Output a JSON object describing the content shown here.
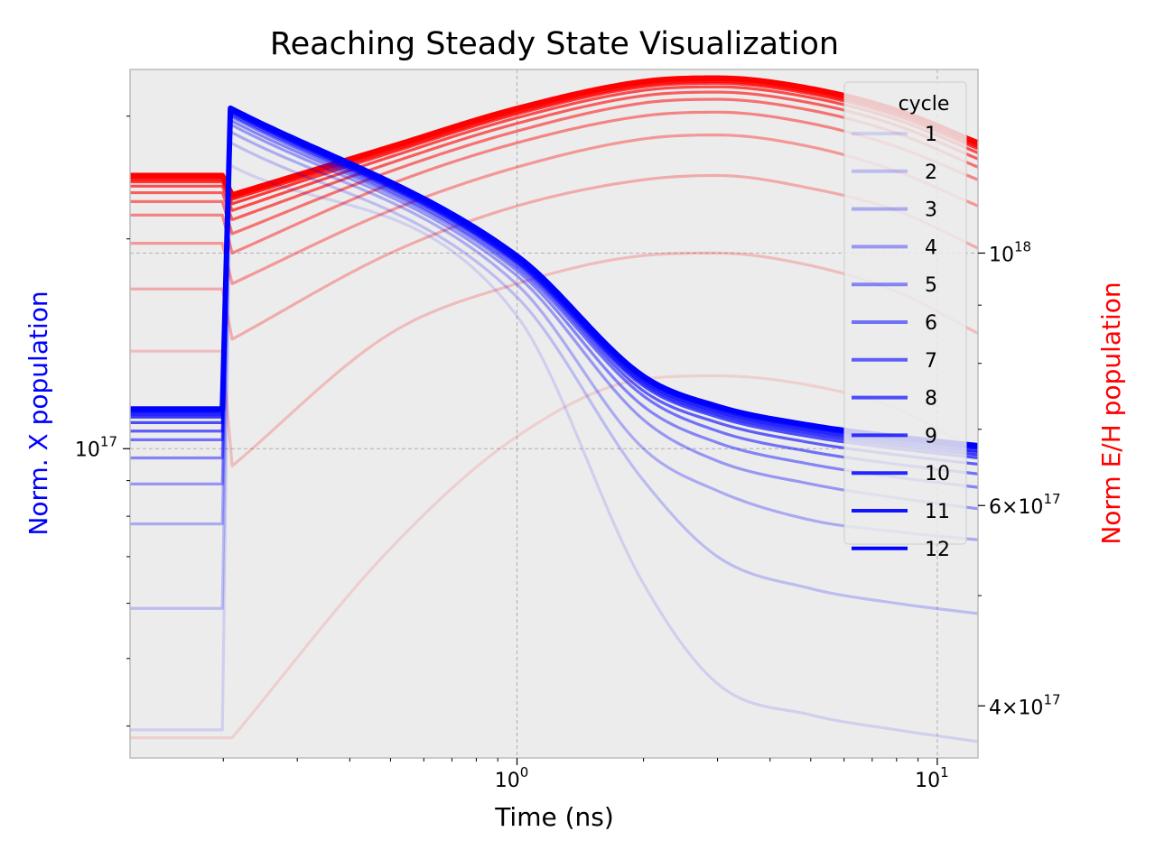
{
  "chart_data": {
    "type": "line",
    "title": "Reaching Steady State Visualization",
    "xlabel": "Time (ns)",
    "ylabel_left": "Norm. X population",
    "ylabel_right": "Norm E/H population",
    "xscale": "log",
    "yscale_left": "log",
    "yscale_right": "log",
    "xlim": [
      0.12,
      12.5
    ],
    "ylim_left": [
      3.6e+16,
      3.5e+17
    ],
    "ylim_right": [
      3.6e+17,
      1.45e+18
    ],
    "x_ticks": [
      {
        "value": 1,
        "mantissa": "10",
        "exponent": "0"
      },
      {
        "value": 10,
        "mantissa": "10",
        "exponent": "1"
      }
    ],
    "y_left_ticks": [
      {
        "value": 1e+17,
        "mantissa": "10",
        "exponent": "17"
      }
    ],
    "y_right_ticks": [
      {
        "value": 1e+18,
        "prefix": "",
        "mantissa": "10",
        "exponent": "18"
      },
      {
        "value": 6e+17,
        "prefix": "6×",
        "mantissa": "10",
        "exponent": "17"
      },
      {
        "value": 4e+17,
        "prefix": "4×",
        "mantissa": "10",
        "exponent": "17"
      }
    ],
    "grid": true,
    "legend": {
      "title": "cycle",
      "placement": "upper right"
    },
    "colors": {
      "x_population": "#0000ff",
      "eh_population": "#ff0000",
      "background": "#ececec"
    },
    "pulse_time": 0.2,
    "series_x": [
      {
        "name": "1",
        "pre": 3.95e+16,
        "peak": 2.55e+17,
        "x": [
          1,
          2,
          3,
          5,
          8,
          12.5
        ],
        "y": [
          1.55e+17,
          6.4e+16,
          4.6e+16,
          4.15e+16,
          3.95e+16,
          3.8e+16
        ]
      },
      {
        "name": "2",
        "pre": 5.9e+16,
        "peak": 2.75e+17,
        "x": [
          1,
          2,
          3,
          5,
          8,
          12.5
        ],
        "y": [
          1.65e+17,
          9e+16,
          7e+16,
          6.3e+16,
          6e+16,
          5.8e+16
        ]
      },
      {
        "name": "3",
        "pre": 7.8e+16,
        "peak": 2.85e+17,
        "x": [
          1,
          2,
          3,
          5,
          8,
          12.5
        ],
        "y": [
          1.72e+17,
          1e+17,
          8.7e+16,
          7.9e+16,
          7.6e+16,
          7.4e+16
        ]
      },
      {
        "name": "4",
        "pre": 8.9e+16,
        "peak": 2.92e+17,
        "x": [
          1,
          2,
          3,
          5,
          8,
          12.5
        ],
        "y": [
          1.77e+17,
          1.1e+17,
          9.6e+16,
          8.9e+16,
          8.5e+16,
          8.2e+16
        ]
      },
      {
        "name": "5",
        "pre": 9.7e+16,
        "peak": 2.96e+17,
        "x": [
          1,
          2,
          3,
          5,
          8,
          12.5
        ],
        "y": [
          1.8e+17,
          1.15e+17,
          1.02e+17,
          9.5e+16,
          9.1e+16,
          8.8e+16
        ]
      },
      {
        "name": "6",
        "pre": 1.03e+17,
        "peak": 3e+17,
        "x": [
          1,
          2,
          3,
          5,
          8,
          12.5
        ],
        "y": [
          1.82e+17,
          1.19e+17,
          1.06e+17,
          9.9e+16,
          9.5e+16,
          9.2e+16
        ]
      },
      {
        "name": "7",
        "pre": 1.06e+17,
        "peak": 3.02e+17,
        "x": [
          1,
          2,
          3,
          5,
          8,
          12.5
        ],
        "y": [
          1.84e+17,
          1.21e+17,
          1.09e+17,
          1.02e+17,
          9.8e+16,
          9.5e+16
        ]
      },
      {
        "name": "8",
        "pre": 1.09e+17,
        "peak": 3.04e+17,
        "x": [
          1,
          2,
          3,
          5,
          8,
          12.5
        ],
        "y": [
          1.85e+17,
          1.23e+17,
          1.11e+17,
          1.04e+17,
          1e+17,
          9.7e+16
        ]
      },
      {
        "name": "9",
        "pre": 1.11e+17,
        "peak": 3.05e+17,
        "x": [
          1,
          2,
          3,
          5,
          8,
          12.5
        ],
        "y": [
          1.86e+17,
          1.24e+17,
          1.12e+17,
          1.05e+17,
          1.01e+17,
          9.8e+16
        ]
      },
      {
        "name": "10",
        "pre": 1.12e+17,
        "peak": 3.06e+17,
        "x": [
          1,
          2,
          3,
          5,
          8,
          12.5
        ],
        "y": [
          1.87e+17,
          1.25e+17,
          1.13e+17,
          1.06e+17,
          1.02e+17,
          9.9e+16
        ]
      },
      {
        "name": "11",
        "pre": 1.13e+17,
        "peak": 3.07e+17,
        "x": [
          1,
          2,
          3,
          5,
          8,
          12.5
        ],
        "y": [
          1.88e+17,
          1.26e+17,
          1.14e+17,
          1.07e+17,
          1.03e+17,
          1e+17
        ]
      },
      {
        "name": "12",
        "pre": 1.14e+17,
        "peak": 3.08e+17,
        "x": [
          1,
          2,
          3,
          5,
          8,
          12.5
        ],
        "y": [
          1.89e+17,
          1.27e+17,
          1.15e+17,
          1.08e+17,
          1.04e+17,
          1.01e+17
        ]
      }
    ],
    "series_eh": [
      {
        "name": "1",
        "pre": 3.75e+17,
        "x": [
          0.21,
          0.5,
          1,
          2,
          3,
          5,
          8,
          12.5
        ],
        "y": [
          3.75e+17,
          5.5e+17,
          6.9e+17,
          7.75e+17,
          7.8e+17,
          7.65e+17,
          7.3e+17,
          6.7e+17
        ]
      },
      {
        "name": "2",
        "pre": 8.2e+17,
        "x": [
          0.21,
          0.5,
          1,
          2,
          3,
          5,
          8,
          12.5
        ],
        "y": [
          6.5e+17,
          8.5e+17,
          9.4e+17,
          9.95e+17,
          1e+18,
          9.75e+17,
          9.25e+17,
          8.5e+17
        ]
      },
      {
        "name": "3",
        "pre": 9.3e+17,
        "x": [
          0.21,
          0.5,
          1,
          2,
          3,
          5,
          8,
          12.5
        ],
        "y": [
          8.4e+17,
          1e+18,
          1.1e+18,
          1.16e+18,
          1.17e+18,
          1.14e+18,
          1.09e+18,
          1.01e+18
        ]
      },
      {
        "name": "4",
        "pre": 1.02e+18,
        "x": [
          0.21,
          0.5,
          1,
          2,
          3,
          5,
          8,
          12.5
        ],
        "y": [
          9.4e+17,
          1.09e+18,
          1.19e+18,
          1.26e+18,
          1.27e+18,
          1.24e+18,
          1.18e+18,
          1.1e+18
        ]
      },
      {
        "name": "5",
        "pre": 1.08e+18,
        "x": [
          0.21,
          0.5,
          1,
          2,
          3,
          5,
          8,
          12.5
        ],
        "y": [
          1e+18,
          1.15e+18,
          1.25e+18,
          1.32e+18,
          1.33e+18,
          1.3e+18,
          1.24e+18,
          1.16e+18
        ]
      },
      {
        "name": "6",
        "pre": 1.11e+18,
        "x": [
          0.21,
          0.5,
          1,
          2,
          3,
          5,
          8,
          12.5
        ],
        "y": [
          1.04e+18,
          1.18e+18,
          1.28e+18,
          1.355e+18,
          1.365e+18,
          1.335e+18,
          1.275e+18,
          1.19e+18
        ]
      },
      {
        "name": "7",
        "pre": 1.13e+18,
        "x": [
          0.21,
          0.5,
          1,
          2,
          3,
          5,
          8,
          12.5
        ],
        "y": [
          1.07e+18,
          1.2e+18,
          1.3e+18,
          1.375e+18,
          1.385e+18,
          1.355e+18,
          1.295e+18,
          1.21e+18
        ]
      },
      {
        "name": "8",
        "pre": 1.145e+18,
        "x": [
          0.21,
          0.5,
          1,
          2,
          3,
          5,
          8,
          12.5
        ],
        "y": [
          1.09e+18,
          1.215e+18,
          1.315e+18,
          1.39e+18,
          1.4e+18,
          1.37e+18,
          1.31e+18,
          1.225e+18
        ]
      },
      {
        "name": "9",
        "pre": 1.155e+18,
        "x": [
          0.21,
          0.5,
          1,
          2,
          3,
          5,
          8,
          12.5
        ],
        "y": [
          1.105e+18,
          1.225e+18,
          1.325e+18,
          1.4e+18,
          1.41e+18,
          1.38e+18,
          1.32e+18,
          1.235e+18
        ]
      },
      {
        "name": "10",
        "pre": 1.16e+18,
        "x": [
          0.21,
          0.5,
          1,
          2,
          3,
          5,
          8,
          12.5
        ],
        "y": [
          1.115e+18,
          1.23e+18,
          1.33e+18,
          1.405e+18,
          1.415e+18,
          1.385e+18,
          1.325e+18,
          1.24e+18
        ]
      },
      {
        "name": "11",
        "pre": 1.165e+18,
        "x": [
          0.21,
          0.5,
          1,
          2,
          3,
          5,
          8,
          12.5
        ],
        "y": [
          1.12e+18,
          1.235e+18,
          1.335e+18,
          1.41e+18,
          1.42e+18,
          1.39e+18,
          1.33e+18,
          1.245e+18
        ]
      },
      {
        "name": "12",
        "pre": 1.17e+18,
        "x": [
          0.21,
          0.5,
          1,
          2,
          3,
          5,
          8,
          12.5
        ],
        "y": [
          1.125e+18,
          1.24e+18,
          1.34e+18,
          1.415e+18,
          1.425e+18,
          1.395e+18,
          1.335e+18,
          1.25e+18
        ]
      }
    ]
  }
}
